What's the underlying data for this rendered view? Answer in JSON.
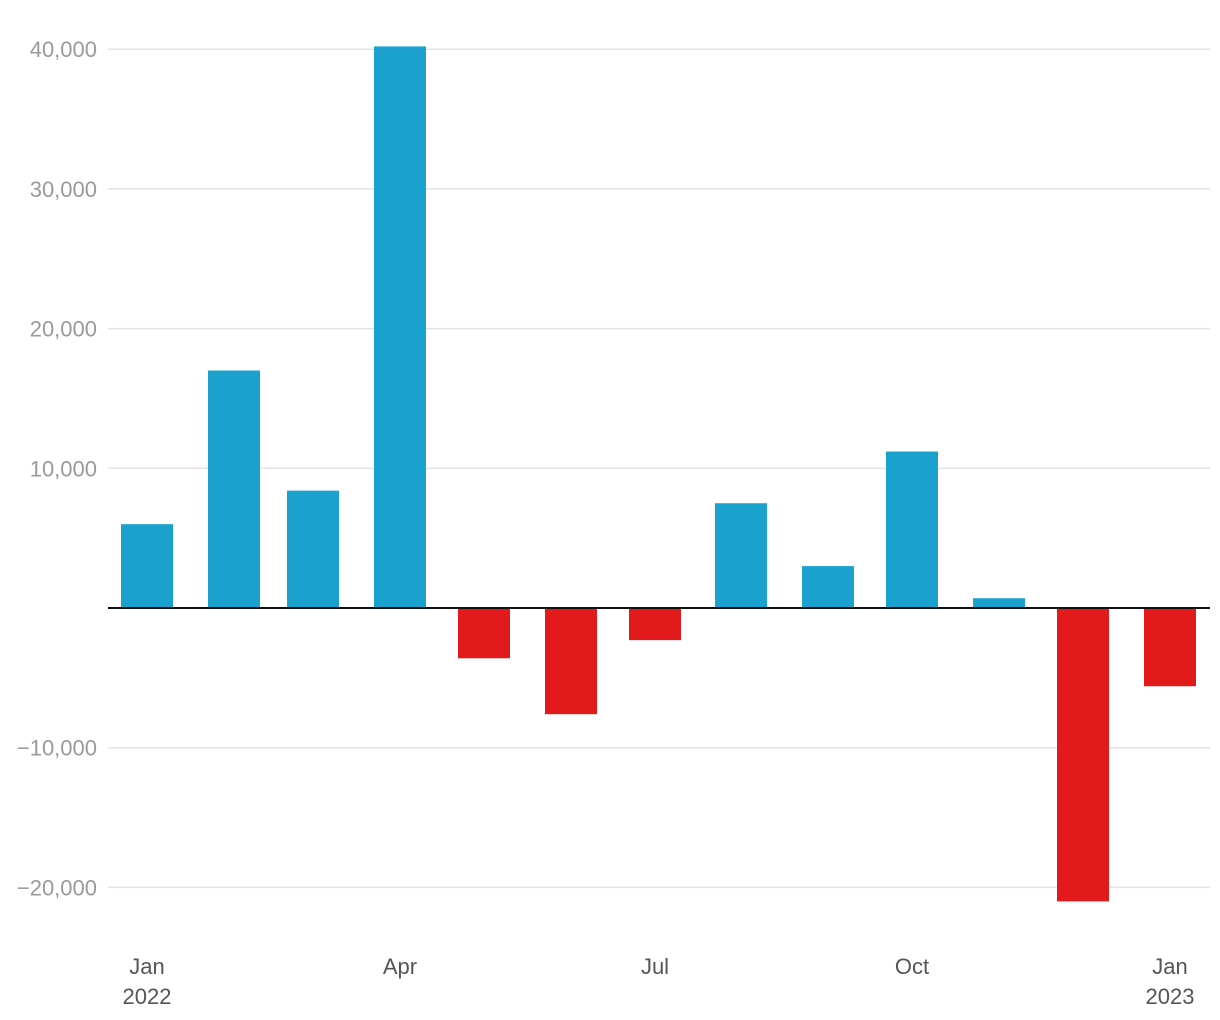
{
  "chart_data": {
    "type": "bar",
    "categories": [
      "Jan 2022",
      "Feb 2022",
      "Mar 2022",
      "Apr 2022",
      "May 2022",
      "Jun 2022",
      "Jul 2022",
      "Aug 2022",
      "Sep 2022",
      "Oct 2022",
      "Nov 2022",
      "Dec 2022",
      "Jan 2023"
    ],
    "values": [
      6000,
      17000,
      8400,
      40200,
      -3600,
      -7600,
      -2300,
      7500,
      3000,
      11200,
      700,
      -21000,
      -5600
    ],
    "ylim": [
      -23000,
      42000
    ],
    "yticks": [
      40000,
      30000,
      20000,
      10000,
      -10000,
      -20000
    ],
    "ytick_labels": [
      "40,000",
      "30,000",
      "20,000",
      "10,000",
      "−10,000",
      "−20,000"
    ],
    "xtick_labels": [
      {
        "index": 0,
        "line1": "Jan",
        "line2": "2022"
      },
      {
        "index": 3,
        "line1": "Apr",
        "line2": ""
      },
      {
        "index": 6,
        "line1": "Jul",
        "line2": ""
      },
      {
        "index": 9,
        "line1": "Oct",
        "line2": ""
      },
      {
        "index": 12,
        "line1": "Jan",
        "line2": "2023"
      }
    ],
    "colors": {
      "positive": "#1aa1ce",
      "negative": "#e31a1c"
    },
    "grid": true,
    "legend": "none",
    "title": "",
    "xlabel": "",
    "ylabel": ""
  }
}
